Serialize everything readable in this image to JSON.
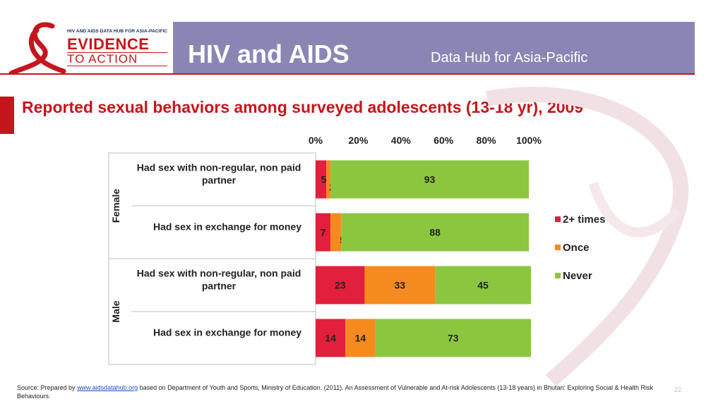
{
  "header": {
    "logo_small_text": "HIV AND AIDS DATA HUB FOR ASIA-PACIFIC",
    "logo_line1": "EVIDENCE",
    "logo_line2": "TO ACTION",
    "title": "HIV and AIDS",
    "subtitle": "Data Hub for Asia-Pacific"
  },
  "slide": {
    "heading": "Reported sexual behaviors among surveyed adolescents (13-18 yr), 2009",
    "footnote_prefix": "Source: Prepared by",
    "footnote_link": "www.aidsdatahub.org",
    "footnote_rest": " based on Department of Youth and Sports, Ministry of Education. (2011). An Assessment of Vulnerable and At-risk Adolescents (13-18 years) in Bhutan: Exploring Social & Health Risk Behaviours.",
    "page_number": "22"
  },
  "colors": {
    "banner": "#8a86b4",
    "accent": "#c4161c",
    "two_plus": "#e21f3d",
    "once": "#f58a1f",
    "never": "#8cc63f"
  },
  "chart_data": {
    "type": "bar",
    "orientation": "horizontal",
    "stacked": "percent",
    "x_ticks": [
      "0%",
      "20%",
      "40%",
      "60%",
      "80%",
      "100%"
    ],
    "xlim": [
      0,
      100
    ],
    "groups": [
      {
        "name": "Female",
        "categories": [
          0,
          1
        ]
      },
      {
        "name": "Male",
        "categories": [
          2,
          3
        ]
      }
    ],
    "categories": [
      "Had sex with non-regular, non paid partner",
      "Had sex in exchange for money",
      "Had sex with non-regular, non paid partner",
      "Had sex in exchange for money"
    ],
    "series": [
      {
        "name": "2+ times",
        "color": "#e21f3d",
        "values": [
          5,
          7,
          23,
          14
        ],
        "labels": [
          "5",
          "7",
          "23",
          "14"
        ]
      },
      {
        "name": "Once",
        "color": "#f58a1f",
        "values": [
          2,
          5,
          33,
          14
        ],
        "labels": [
          "2",
          "5",
          "33",
          "14"
        ]
      },
      {
        "name": "Never",
        "color": "#8cc63f",
        "values": [
          93,
          88,
          45,
          73
        ],
        "labels": [
          "93",
          "88",
          "45",
          "73"
        ]
      }
    ],
    "legend_position": "right"
  }
}
